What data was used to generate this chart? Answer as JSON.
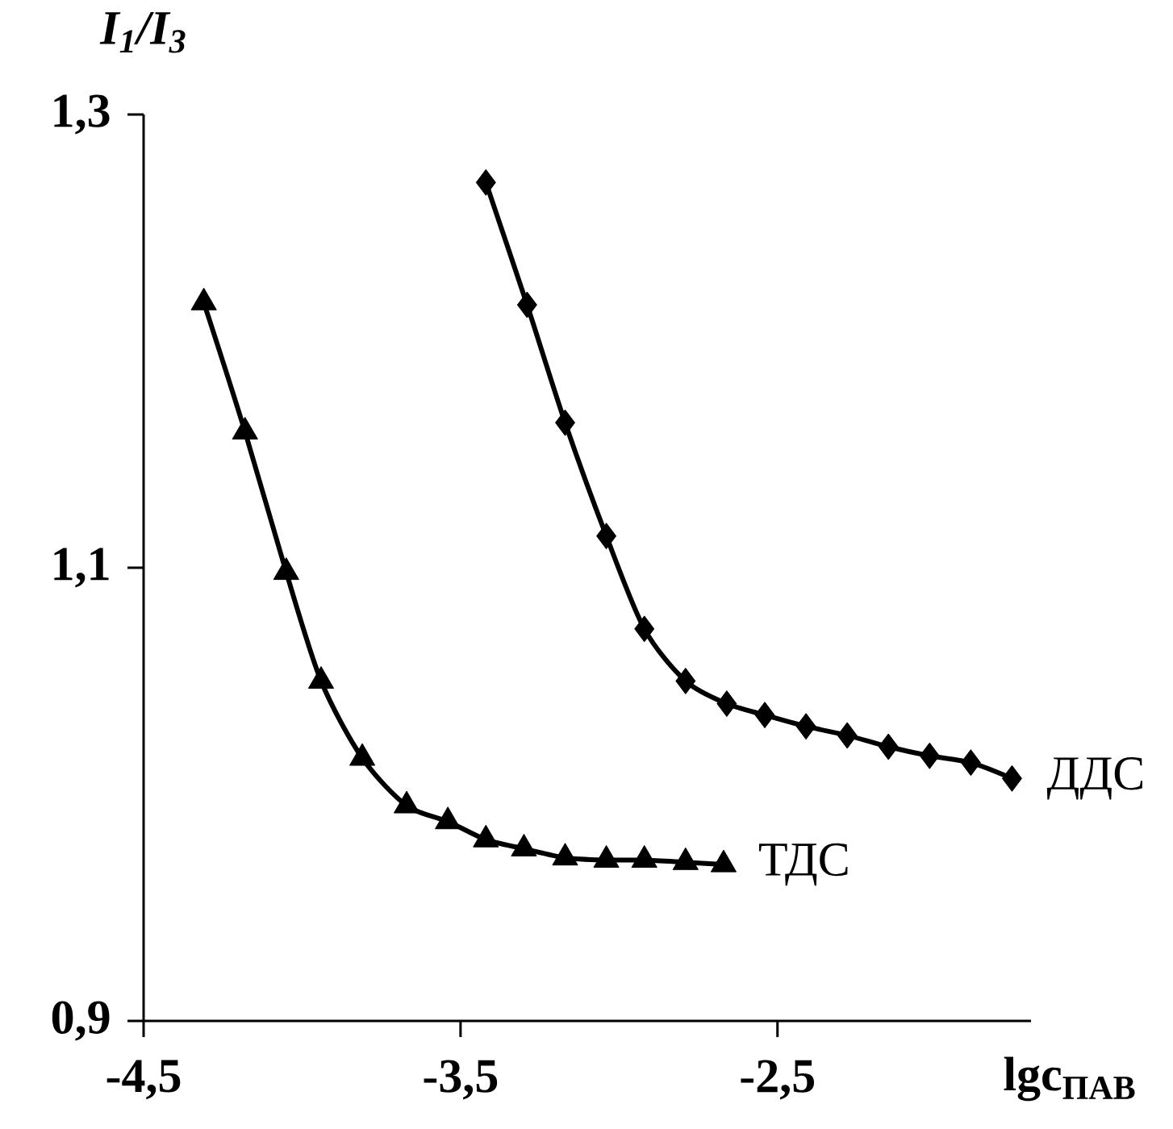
{
  "chart_data": {
    "type": "line",
    "xlabel": "lgc$_{ПАВ}$",
    "ylabel": "I$_{1}$/I$_{3}$",
    "xlim": [
      -4.5,
      -1.7
    ],
    "ylim": [
      0.9,
      1.3
    ],
    "xticks": [
      {
        "value": -4.5,
        "label": "-4,5"
      },
      {
        "value": -3.5,
        "label": "-3,5"
      },
      {
        "value": -2.5,
        "label": "-2,5"
      }
    ],
    "yticks": [
      {
        "value": 0.9,
        "label": "0,9"
      },
      {
        "value": 1.1,
        "label": "1,1"
      },
      {
        "value": 1.3,
        "label": "1,3"
      }
    ],
    "grid": false,
    "legend": false,
    "series": [
      {
        "name": "ТДС",
        "color": "#000000",
        "marker": "triangle",
        "x": [
          -4.31,
          -4.18,
          -4.05,
          -3.94,
          -3.81,
          -3.67,
          -3.54,
          -3.42,
          -3.3,
          -3.17,
          -3.04,
          -2.92,
          -2.79,
          -2.67
        ],
        "values": [
          1.217,
          1.16,
          1.098,
          1.05,
          1.016,
          0.995,
          0.988,
          0.98,
          0.976,
          0.972,
          0.971,
          0.971,
          0.97,
          0.969
        ]
      },
      {
        "name": "ДДС",
        "color": "#000000",
        "marker": "diamond",
        "x": [
          -3.42,
          -3.29,
          -3.17,
          -3.04,
          -2.92,
          -2.79,
          -2.66,
          -2.54,
          -2.41,
          -2.28,
          -2.15,
          -2.02,
          -1.89,
          -1.76
        ],
        "values": [
          1.27,
          1.216,
          1.164,
          1.114,
          1.073,
          1.05,
          1.04,
          1.035,
          1.03,
          1.026,
          1.021,
          1.017,
          1.014,
          1.007
        ]
      }
    ]
  }
}
